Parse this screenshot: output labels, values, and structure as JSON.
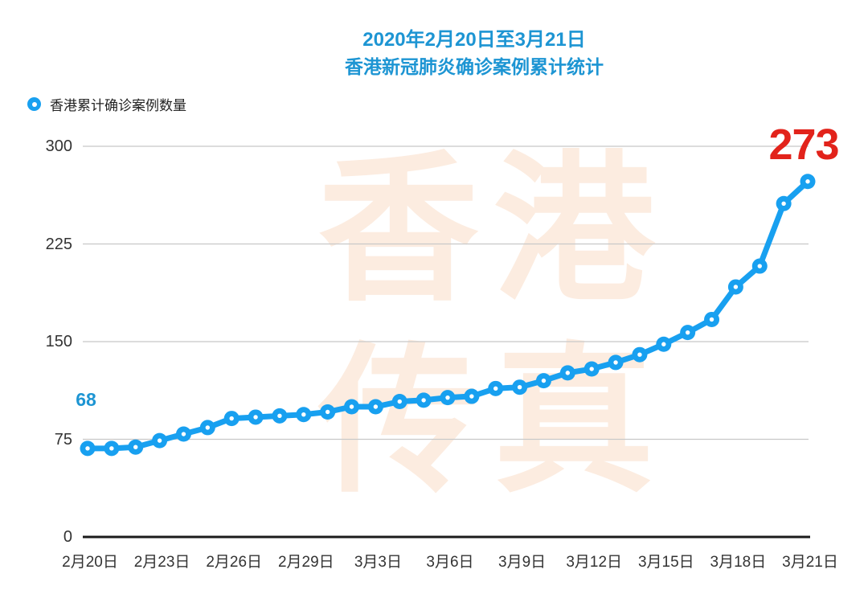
{
  "page": {
    "background": "#ffffff"
  },
  "title": {
    "line1": "2020年2月20日至3月21日",
    "line2": "香港新冠肺炎确诊案例累计统计",
    "color": "#1d95d3"
  },
  "legend": {
    "label": "香港累计确诊案例数量",
    "marker": "blue-circle-white-center",
    "marker_color": "#18a0f0"
  },
  "watermark": {
    "line1": "香港",
    "line2": "传真",
    "color": "#fcece0"
  },
  "annotations": {
    "start": {
      "text": "68",
      "color": "#1d95d3"
    },
    "end": {
      "text": "273",
      "color": "#e2231b"
    }
  },
  "chart_data": {
    "type": "line",
    "title": "2020年2月20日至3月21日 香港新冠肺炎确诊案例累计统计",
    "series_name": "香港累计确诊案例数量",
    "x": [
      "2月20日",
      "2月21日",
      "2月22日",
      "2月23日",
      "2月24日",
      "2月25日",
      "2月26日",
      "2月27日",
      "2月28日",
      "2月29日",
      "3月1日",
      "3月2日",
      "3月3日",
      "3月4日",
      "3月5日",
      "3月6日",
      "3月7日",
      "3月8日",
      "3月9日",
      "3月10日",
      "3月11日",
      "3月12日",
      "3月13日",
      "3月14日",
      "3月15日",
      "3月16日",
      "3月17日",
      "3月18日",
      "3月19日",
      "3月20日",
      "3月21日"
    ],
    "values": [
      68,
      68,
      69,
      74,
      79,
      84,
      91,
      92,
      93,
      94,
      96,
      100,
      100,
      104,
      105,
      107,
      108,
      114,
      115,
      120,
      126,
      129,
      134,
      140,
      148,
      157,
      167,
      192,
      208,
      256,
      273
    ],
    "x_tick_labels": [
      "2月20日",
      "2月23日",
      "2月26日",
      "2月29日",
      "3月3日",
      "3月6日",
      "3月9日",
      "3月12日",
      "3月15日",
      "3月18日",
      "3月21日"
    ],
    "x_tick_every": 3,
    "yticks": [
      0,
      75,
      150,
      225,
      300
    ],
    "ylim": [
      0,
      300
    ],
    "grid": "horizontal",
    "legend_position": "top-left",
    "line_color": "#18a0f0",
    "marker": "circle-with-white-dot",
    "gridline_color": "#c8c8c8",
    "axis_line_color": "#1b1b1b",
    "tick_label_color": "#333333"
  }
}
